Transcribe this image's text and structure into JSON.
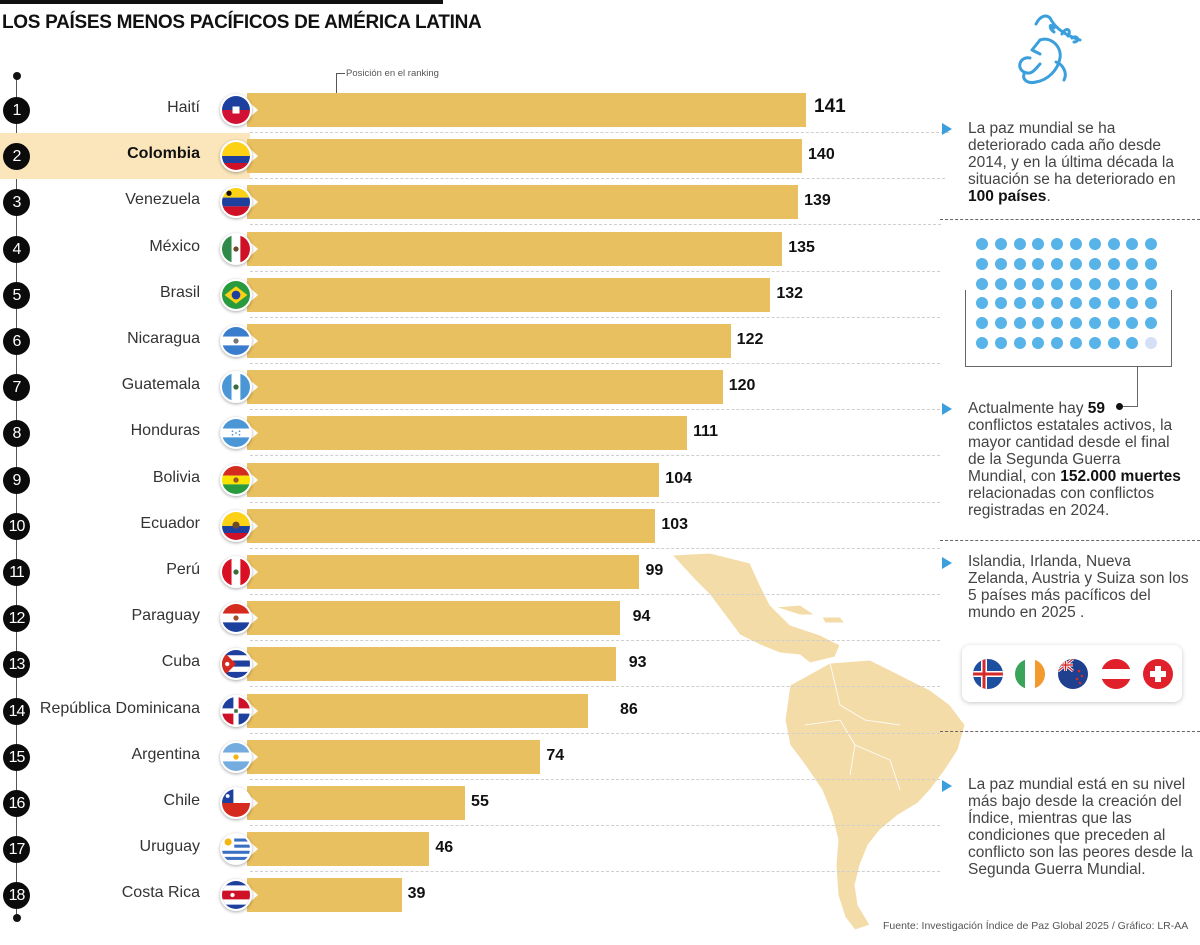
{
  "title": "LOS PAÍSES MENOS PACÍFICOS DE AMÉRICA LATINA",
  "annotation": "Posición en el ranking",
  "colors": {
    "bar": "#e9c05f",
    "highlight_row": "#fbe6bb",
    "accent_blue": "#3a9fdc",
    "dot_blue": "#57b3e8",
    "dot_empty": "#d5dff5",
    "map": "#f3dca8"
  },
  "chart_data": {
    "type": "bar",
    "orientation": "horizontal",
    "title": "LOS PAÍSES MENOS PACÍFICOS DE AMÉRICA LATINA",
    "xlabel": "",
    "ylabel": "",
    "value_label": "Posición en el ranking",
    "xlim": [
      0,
      141
    ],
    "grid": false,
    "highlight": "Colombia",
    "categories": [
      "Haití",
      "Colombia",
      "Venezuela",
      "México",
      "Brasil",
      "Nicaragua",
      "Guatemala",
      "Honduras",
      "Bolivia",
      "Ecuador",
      "Perú",
      "Paraguay",
      "Cuba",
      "República Dominicana",
      "Argentina",
      "Chile",
      "Uruguay",
      "Costa Rica"
    ],
    "ranks": [
      1,
      2,
      3,
      4,
      5,
      6,
      7,
      8,
      9,
      10,
      11,
      12,
      13,
      14,
      15,
      16,
      17,
      18
    ],
    "values": [
      141,
      140,
      139,
      135,
      132,
      122,
      120,
      111,
      104,
      103,
      99,
      94,
      93,
      86,
      74,
      55,
      46,
      39
    ],
    "flags": [
      "haiti-flag",
      "colombia-flag",
      "venezuela-flag",
      "mexico-flag",
      "brazil-flag",
      "nicaragua-flag",
      "guatemala-flag",
      "honduras-flag",
      "bolivia-flag",
      "ecuador-flag",
      "peru-flag",
      "paraguay-flag",
      "cuba-flag",
      "dominican-republic-flag",
      "argentina-flag",
      "chile-flag",
      "uruguay-flag",
      "costa-rica-flag"
    ]
  },
  "sidebar": {
    "icon": "peace-dove-icon",
    "para1": {
      "text": "La paz mundial se ha deteriorado cada año desde 2014, y en la última década la situación se ha deteriorado en ",
      "bold": "100 países",
      "tail": "."
    },
    "conflicts": {
      "total_dots": 60,
      "active": 59
    },
    "para2": {
      "pre": "Actualmente hay ",
      "bold1": "59",
      "mid": " conflictos estatales activos, la mayor cantidad desde el final de la Segunda Guerra Mundial, con ",
      "bold2": "152.000 muertes",
      "tail": " relacionadas con conflictos registradas en 2024."
    },
    "para3": "Islandia, Irlanda, Nueva Zelanda, Austria y Suiza son los 5 países más pacíficos del mundo en 2025 .",
    "peaceful_flags": [
      "iceland-flag",
      "ireland-flag",
      "new-zealand-flag",
      "austria-flag",
      "switzerland-flag"
    ],
    "para4": "La paz mundial está en su nivel más bajo desde la creación del Índice, mientras que las condiciones que preceden al conflicto son las peores desde la Segunda Guerra Mundial."
  },
  "source": "Fuente: Investigación Índice de Paz Global 2025 / Gráfico: LR-AA"
}
